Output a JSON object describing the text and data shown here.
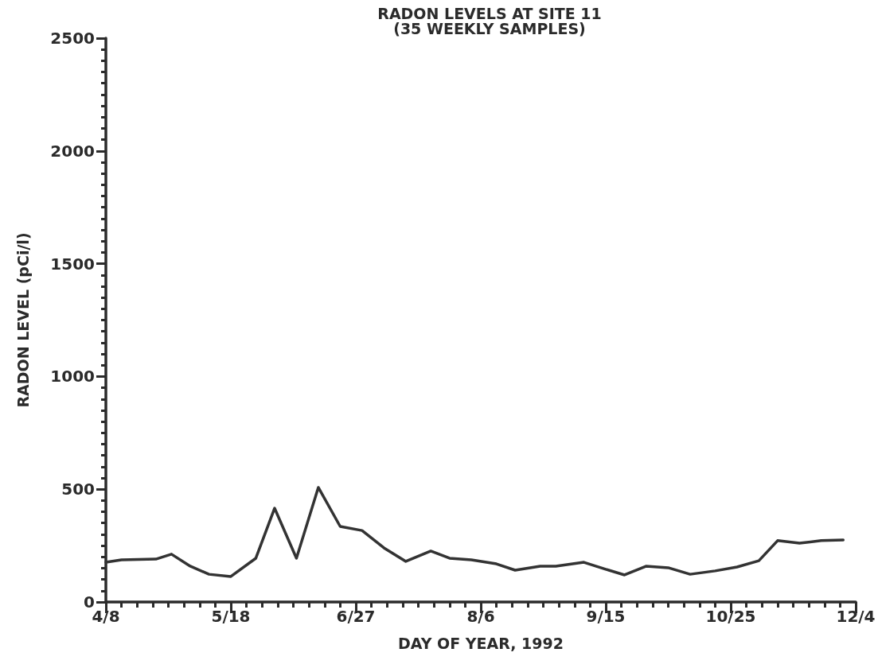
{
  "chart_data": {
    "type": "line",
    "title": "RADON LEVELS AT SITE 11",
    "subtitle": "(35 WEEKLY SAMPLES)",
    "xlabel": "DAY OF YEAR, 1992",
    "ylabel": "RADON LEVEL (pCi/l)",
    "x": [
      "1992-04-08",
      "1992-04-13",
      "1992-04-24",
      "1992-04-29",
      "1992-05-05",
      "1992-05-11",
      "1992-05-18",
      "1992-05-26",
      "1992-06-01",
      "1992-06-08",
      "1992-06-15",
      "1992-06-22",
      "1992-06-29",
      "1992-07-06",
      "1992-07-13",
      "1992-07-21",
      "1992-07-27",
      "1992-08-03",
      "1992-08-11",
      "1992-08-17",
      "1992-08-25",
      "1992-08-30",
      "1992-09-08",
      "1992-09-15",
      "1992-09-21",
      "1992-09-28",
      "1992-10-05",
      "1992-10-12",
      "1992-10-20",
      "1992-10-27",
      "1992-11-03",
      "1992-11-09",
      "1992-11-16",
      "1992-11-23",
      "1992-11-30"
    ],
    "series": [
      {
        "color": "#333333",
        "values": [
          176,
          187,
          190,
          212,
          159,
          123,
          113,
          194,
          416,
          194,
          508,
          335,
          317,
          240,
          180,
          226,
          194,
          187,
          169,
          141,
          159,
          159,
          176,
          145,
          120,
          159,
          152,
          123,
          138,
          155,
          183,
          272,
          261,
          272,
          275
        ]
      }
    ],
    "xlim": [
      "1992-04-08",
      "1992-12-04"
    ],
    "xticks": [
      {
        "value": "1992-04-08",
        "label": "4/8"
      },
      {
        "value": "1992-05-18",
        "label": "5/18"
      },
      {
        "value": "1992-06-27",
        "label": "6/27"
      },
      {
        "value": "1992-08-06",
        "label": "8/6"
      },
      {
        "value": "1992-09-15",
        "label": "9/15"
      },
      {
        "value": "1992-10-25",
        "label": "10/25"
      },
      {
        "value": "1992-12-04",
        "label": "12/4"
      }
    ],
    "ylim": [
      0,
      2500
    ],
    "yticks": [
      0,
      500,
      1000,
      1500,
      2000,
      2500
    ],
    "grid": false,
    "marker": "none",
    "line_style": "solid"
  }
}
